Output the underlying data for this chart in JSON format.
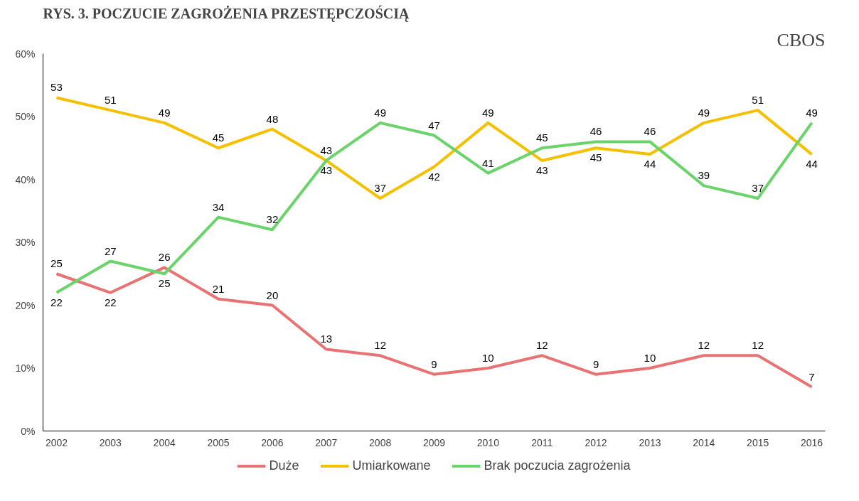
{
  "chart_data": {
    "type": "line",
    "title": "RYS. 3. POCZUCIE ZAGROŻENIA PRZESTĘPCZOŚCIĄ",
    "annotations": [
      "CBOS"
    ],
    "categories": [
      "2002",
      "2003",
      "2004",
      "2005",
      "2006",
      "2007",
      "2008",
      "2009",
      "2010",
      "2011",
      "2012",
      "2013",
      "2014",
      "2015",
      "2016"
    ],
    "ylim": [
      0,
      60
    ],
    "yticks": [
      {
        "value": 0,
        "label": "0%"
      },
      {
        "value": 10,
        "label": "10%"
      },
      {
        "value": 20,
        "label": "20%"
      },
      {
        "value": 30,
        "label": "30%"
      },
      {
        "value": 40,
        "label": "40%"
      },
      {
        "value": 50,
        "label": "50%"
      },
      {
        "value": 60,
        "label": "60%"
      }
    ],
    "grid": false,
    "legend": "bottom",
    "data_labels": true,
    "series": [
      {
        "name": "Duże",
        "color": "#e97272",
        "values": [
          25,
          22,
          26,
          21,
          20,
          13,
          12,
          9,
          10,
          12,
          9,
          10,
          12,
          12,
          7
        ]
      },
      {
        "name": "Umiarkowane",
        "color": "#f5c000",
        "values": [
          53,
          51,
          49,
          45,
          48,
          43,
          37,
          42,
          49,
          43,
          45,
          44,
          49,
          51,
          44
        ]
      },
      {
        "name": "Brak poczucia zagrożenia",
        "color": "#6ad46a",
        "values": [
          22,
          27,
          25,
          34,
          32,
          43,
          49,
          47,
          41,
          45,
          46,
          46,
          39,
          37,
          49
        ]
      }
    ]
  }
}
